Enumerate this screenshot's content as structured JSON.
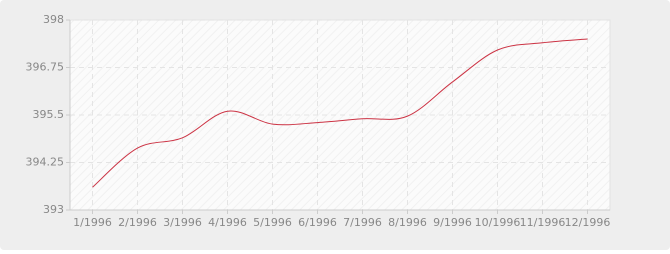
{
  "chart_data": {
    "type": "line",
    "categories": [
      "1/1996",
      "2/1996",
      "3/1996",
      "4/1996",
      "5/1996",
      "6/1996",
      "7/1996",
      "8/1996",
      "9/1996",
      "10/1996",
      "11/1996",
      "12/1996"
    ],
    "values": [
      393.6,
      394.63,
      394.9,
      395.6,
      395.26,
      395.3,
      395.4,
      395.47,
      396.37,
      397.21,
      397.4,
      397.5
    ],
    "color": "#cc3344",
    "ylim": [
      393,
      398
    ],
    "yticks": [
      393,
      394.25,
      395.5,
      396.75,
      398
    ],
    "grid": true
  }
}
